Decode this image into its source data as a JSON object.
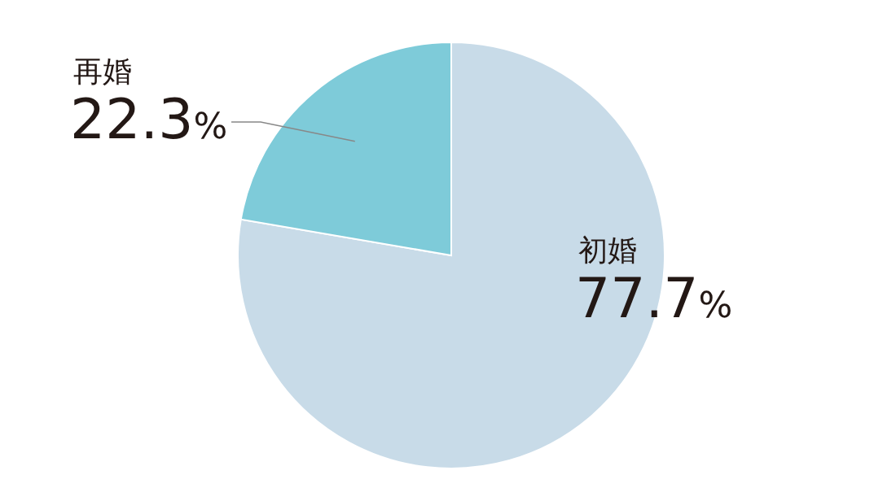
{
  "chart_data": {
    "type": "pie",
    "categories": [
      "初婚",
      "再婚"
    ],
    "values": [
      77.7,
      22.3
    ],
    "colors": [
      "#c8dbe8",
      "#7ecbd9"
    ],
    "value_labels": [
      "77.7%",
      "22.3%"
    ]
  }
}
